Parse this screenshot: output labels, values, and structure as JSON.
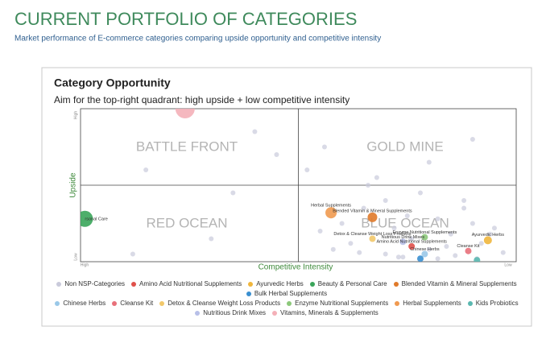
{
  "header": {
    "title": "CURRENT PORTFOLIO OF CATEGORIES",
    "subtitle": "Market performance of E-commerce categories comparing upside opportunity and competitive intensity"
  },
  "chart_data": {
    "type": "scatter",
    "title": "Category Opportunity",
    "subtitle": "Aim for the top-right quadrant: high upside + low competitive intensity",
    "x_label": "Competitive Intensity",
    "y_label": "Upside",
    "xlim": [
      100,
      0
    ],
    "ylim": [
      0,
      100
    ],
    "xticks": [
      {
        "value": 100,
        "label": "High"
      },
      {
        "value": 0,
        "label": "Low"
      }
    ],
    "yticks": [
      {
        "value": 0,
        "label": "Low"
      },
      {
        "value": 100,
        "label": "High"
      }
    ],
    "quadrant_labels": [
      "BATTLE FRONT",
      "GOLD MINE",
      "RED OCEAN",
      "BLUE OCEAN"
    ],
    "series": [
      {
        "name": "Non NSP-Categories",
        "color": "#c9cadb",
        "x": [
          45,
          40,
          38,
          35,
          30,
          28,
          25,
          22,
          20,
          18,
          15,
          12,
          10,
          8,
          5,
          3,
          30,
          26,
          18,
          14,
          9,
          6,
          42,
          36,
          24,
          16,
          12,
          48,
          44,
          32,
          20,
          10,
          60,
          55,
          70,
          85,
          88,
          65,
          34,
          27
        ],
        "values": [
          20,
          25,
          12,
          35,
          40,
          22,
          30,
          45,
          8,
          28,
          18,
          35,
          25,
          12,
          22,
          6,
          5,
          3,
          2,
          4,
          2,
          18,
          8,
          6,
          15,
          10,
          40,
          60,
          75,
          55,
          65,
          80,
          85,
          70,
          15,
          60,
          5,
          45,
          50,
          3
        ],
        "sizes": [
          3,
          3,
          3,
          3,
          3,
          3,
          3,
          3,
          3,
          3,
          3,
          3,
          3,
          3,
          3,
          3,
          3,
          3,
          3,
          3,
          3,
          3,
          3,
          3,
          3,
          3,
          3,
          3,
          3,
          3,
          3,
          3,
          3,
          3,
          3,
          3,
          3,
          3,
          3,
          3
        ]
      },
      {
        "name": "Amino Acid Nutritional Supplements",
        "color": "#e0504a",
        "x": [
          24
        ],
        "values": [
          10
        ],
        "sizes": [
          4
        ],
        "point_labels": [
          "Amino Acid Nutritional Supplements"
        ]
      },
      {
        "name": "Ayurvedic Herbs",
        "color": "#f0b63c",
        "x": [
          6.5
        ],
        "values": [
          14
        ],
        "sizes": [
          5
        ],
        "point_labels": [
          "Ayurvedic Herbs"
        ]
      },
      {
        "name": "Beauty & Personal Care",
        "color": "#3aa55a",
        "x": [
          99
        ],
        "values": [
          28
        ],
        "sizes": [
          10
        ],
        "point_labels": [
          "rsonal Care"
        ]
      },
      {
        "name": "Blended Vitamin & Mineral Supplements",
        "color": "#e07a2a",
        "x": [
          33
        ],
        "values": [
          29
        ],
        "sizes": [
          6
        ],
        "point_labels": [
          "Blended Vitamin & Mineral Supplements"
        ]
      },
      {
        "name": "Bulk Herbal Supplements",
        "color": "#3a8fd0",
        "x": [
          22
        ],
        "values": [
          2
        ],
        "sizes": [
          4
        ]
      },
      {
        "name": "Chinese Herbs",
        "color": "#9ac8e8",
        "x": [
          21
        ],
        "values": [
          5
        ],
        "sizes": [
          4
        ],
        "point_labels": [
          "Chinese Herbs"
        ]
      },
      {
        "name": "Cleanse Kit",
        "color": "#e8707a",
        "x": [
          11
        ],
        "values": [
          7
        ],
        "sizes": [
          4
        ],
        "point_labels": [
          "Cleanse Kit"
        ]
      },
      {
        "name": "Detox & Cleanse Weight Loss Products",
        "color": "#f2c86a",
        "x": [
          33
        ],
        "values": [
          15
        ],
        "sizes": [
          4
        ],
        "point_labels": [
          "Detox & Cleanse Weight Loss Products"
        ]
      },
      {
        "name": "Enzyme Nutritional Supplements",
        "color": "#8cc87a",
        "x": [
          21
        ],
        "values": [
          16
        ],
        "sizes": [
          4
        ],
        "point_labels": [
          "Enzyme Nutritional Supplements"
        ]
      },
      {
        "name": "Herbal Supplements",
        "color": "#f09a50",
        "x": [
          42.5
        ],
        "values": [
          32
        ],
        "sizes": [
          7
        ],
        "point_labels": [
          "Herbal Supplements"
        ]
      },
      {
        "name": "Kids Probiotics",
        "color": "#5ab8b0",
        "x": [
          9
        ],
        "values": [
          1
        ],
        "sizes": [
          4
        ]
      },
      {
        "name": "Nutritious Drink Mixes",
        "color": "#b8c0e8",
        "x": [
          26
        ],
        "values": [
          13
        ],
        "sizes": [
          4
        ],
        "point_labels": [
          "Nutritious Drink Mixes"
        ]
      },
      {
        "name": "Vitamins, Minerals & Supplements",
        "color": "#f4b0b8",
        "x": [
          76
        ],
        "values": [
          100
        ],
        "sizes": [
          12
        ]
      }
    ]
  }
}
